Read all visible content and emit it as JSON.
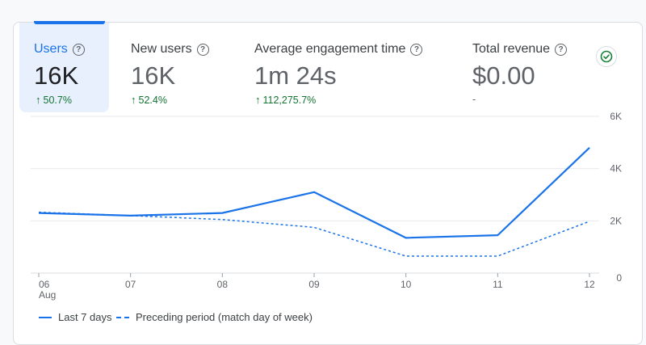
{
  "metrics": [
    {
      "label": "Users",
      "value": "16K",
      "change": "50.7%",
      "trend": "up"
    },
    {
      "label": "New users",
      "value": "16K",
      "change": "52.4%",
      "trend": "up"
    },
    {
      "label": "Average engagement time",
      "value": "1m 24s",
      "change": "112,275.7%",
      "trend": "up"
    },
    {
      "label": "Total revenue",
      "value": "$0.00",
      "change": "-",
      "trend": "none"
    }
  ],
  "icons": {
    "help": "help-circle-icon",
    "status": "check-circle-icon",
    "arrow": "arrow-up-icon"
  },
  "colors": {
    "accent": "#1a73e8",
    "positive": "#137333",
    "status_green": "#188038"
  },
  "chart_data": {
    "type": "line",
    "x": [
      "06",
      "07",
      "08",
      "09",
      "10",
      "11",
      "12"
    ],
    "x_sublabel": "Aug",
    "y_ticks": [
      "0",
      "2K",
      "4K",
      "6K"
    ],
    "ylim": [
      0,
      6000
    ],
    "grid": true,
    "legend_position": "bottom-left",
    "series": [
      {
        "name": "Last 7 days",
        "style": "solid",
        "values": [
          2300,
          2200,
          2300,
          3100,
          1350,
          1450,
          4800
        ]
      },
      {
        "name": "Preceding period (match day of week)",
        "style": "dashed",
        "values": [
          2330,
          2200,
          2050,
          1750,
          650,
          650,
          1980
        ]
      }
    ]
  }
}
